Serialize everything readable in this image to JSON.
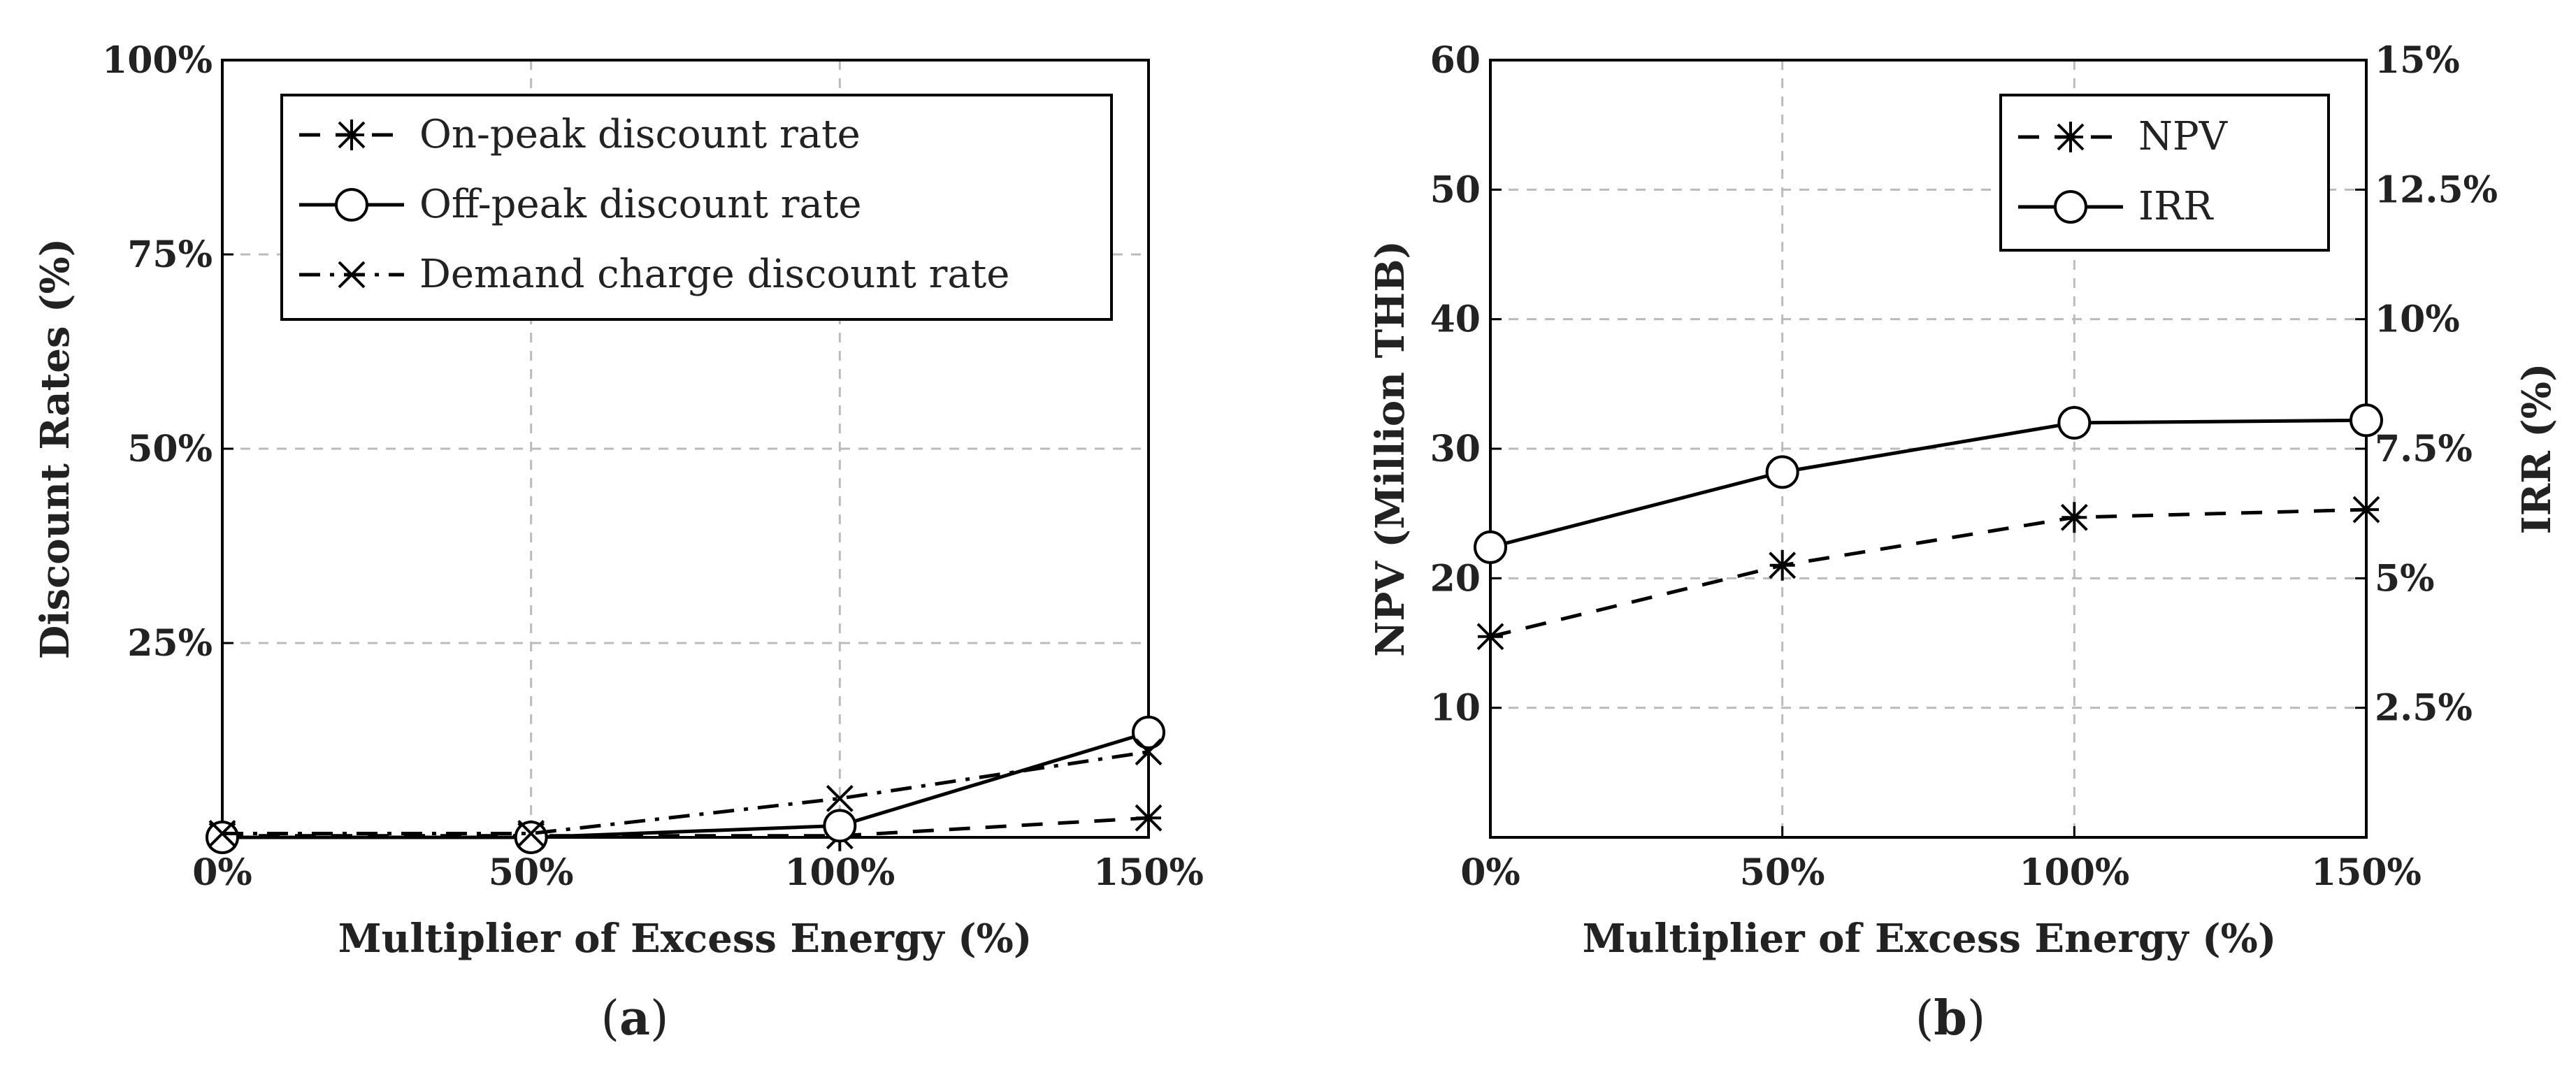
{
  "chart_data": [
    {
      "panel_label": "(a)",
      "panel_letter": "a",
      "type": "line",
      "xlabel": "Multiplier of Excess Energy (%)",
      "ylabel": "Discount Rates (%)",
      "x": [
        0,
        50,
        100,
        150
      ],
      "x_tick_labels": [
        "0%",
        "50%",
        "100%",
        "150%"
      ],
      "xlim": [
        0,
        150
      ],
      "ylim": [
        0,
        100
      ],
      "y_ticks": [
        25,
        50,
        75,
        100
      ],
      "y_tick_labels": [
        "25%",
        "50%",
        "75%",
        "100%"
      ],
      "grid": true,
      "legend_position": "top-right",
      "series": [
        {
          "name": "On-peak discount rate",
          "line_style": "dashed",
          "marker": "asterisk",
          "values": [
            0.2,
            0.2,
            0.2,
            2.5
          ]
        },
        {
          "name": "Off-peak discount rate",
          "line_style": "solid",
          "marker": "circle",
          "values": [
            0,
            0,
            1.5,
            13.5
          ]
        },
        {
          "name": "Demand charge discount rate",
          "line_style": "dash-dot",
          "marker": "x",
          "values": [
            0.5,
            0.5,
            5,
            11
          ]
        }
      ]
    },
    {
      "panel_label": "(b)",
      "panel_letter": "b",
      "type": "line",
      "xlabel": "Multiplier of Excess Energy (%)",
      "ylabel": "NPV (Million THB)",
      "y2label": "IRR (%)",
      "x": [
        0,
        50,
        100,
        150
      ],
      "x_tick_labels": [
        "0%",
        "50%",
        "100%",
        "150%"
      ],
      "xlim": [
        0,
        150
      ],
      "ylim": [
        0,
        60
      ],
      "y_ticks": [
        10,
        20,
        30,
        40,
        50,
        60
      ],
      "y_tick_labels": [
        "10",
        "20",
        "30",
        "40",
        "50",
        "60"
      ],
      "y2lim": [
        0,
        15
      ],
      "y2_ticks": [
        2.5,
        5,
        7.5,
        10,
        12.5,
        15
      ],
      "y2_tick_labels": [
        "2.5%",
        "5%",
        "7.5%",
        "10%",
        "12.5%",
        "15%"
      ],
      "grid": true,
      "legend_position": "top-right",
      "series": [
        {
          "name": "NPV",
          "axis": "left",
          "line_style": "dashed",
          "marker": "asterisk",
          "values": [
            15.5,
            21,
            24.7,
            25.3
          ]
        },
        {
          "name": "IRR",
          "axis": "right",
          "line_style": "solid",
          "marker": "circle",
          "values": [
            5.6,
            7.05,
            8.0,
            8.05
          ]
        }
      ]
    }
  ]
}
